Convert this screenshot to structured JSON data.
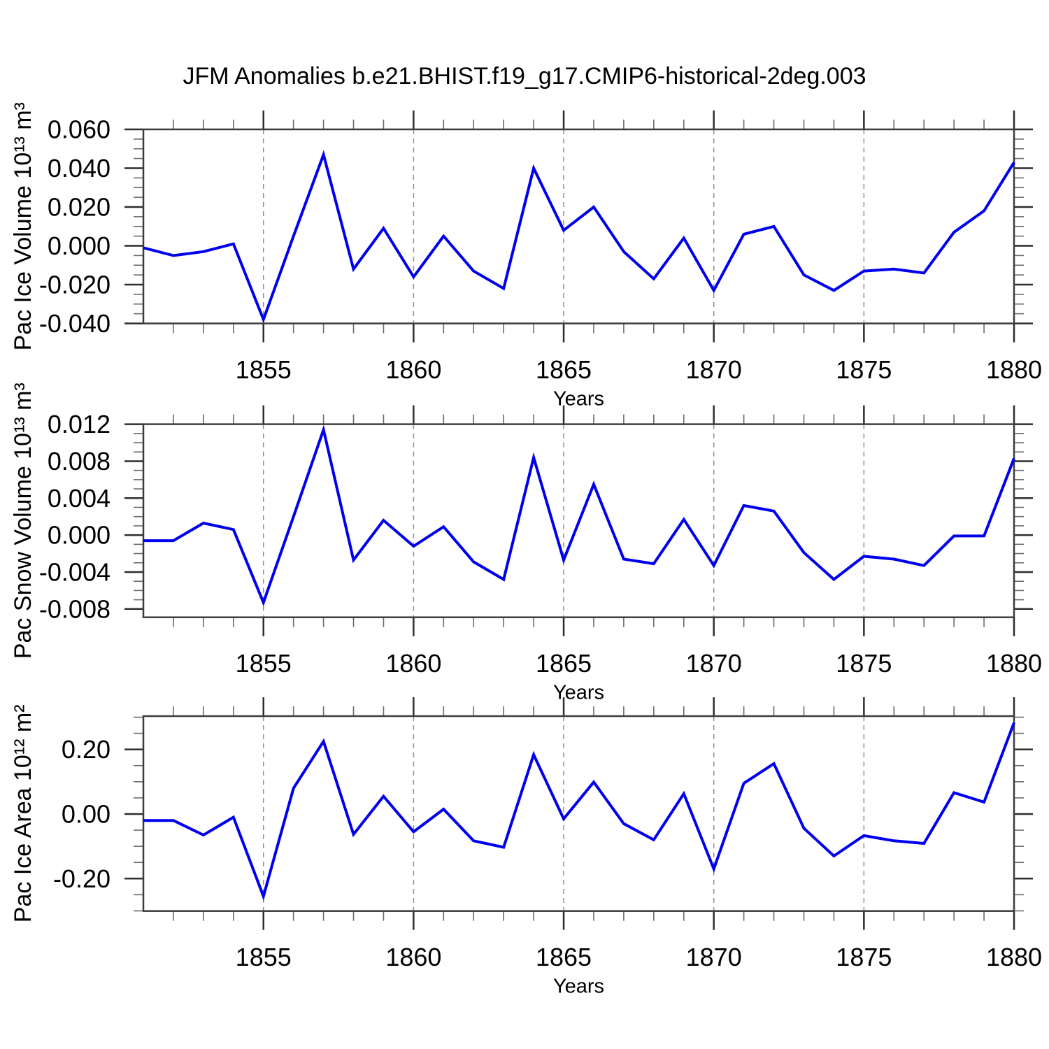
{
  "title": "JFM Anomalies b.e21.BHIST.f19_g17.CMIP6-historical-2deg.003",
  "colors": {
    "line": "#0000EE",
    "frame": "#3d3d3d",
    "major_tick": "#2e2e2e",
    "minor_tick": "#6b6b6b",
    "gridline": "#909090",
    "text": "#000000"
  },
  "chart_data": [
    {
      "type": "line",
      "panel": "pac-ice-volume",
      "ylabel": "Pac Ice Volume 10¹³ m³",
      "xlabel": "Years",
      "x": [
        1851,
        1852,
        1853,
        1854,
        1855,
        1856,
        1857,
        1858,
        1859,
        1860,
        1861,
        1862,
        1863,
        1864,
        1865,
        1866,
        1867,
        1868,
        1869,
        1870,
        1871,
        1872,
        1873,
        1874,
        1875,
        1876,
        1877,
        1878,
        1879,
        1880
      ],
      "values": [
        -0.001,
        -0.005,
        -0.003,
        0.001,
        -0.038,
        0.005,
        0.047,
        -0.012,
        0.009,
        -0.016,
        0.005,
        -0.013,
        -0.022,
        0.04,
        0.008,
        0.02,
        -0.003,
        -0.017,
        0.004,
        -0.023,
        0.006,
        0.01,
        -0.015,
        -0.023,
        -0.013,
        -0.012,
        -0.014,
        0.007,
        0.018,
        0.043
      ],
      "xlim": [
        1851,
        1880
      ],
      "ylim": [
        -0.04,
        0.06
      ],
      "ytick_values": [
        0.06,
        0.04,
        0.02,
        0.0,
        -0.02,
        -0.04
      ],
      "ytick_labels": [
        "0.060",
        "0.040",
        "0.020",
        "0.000",
        "-0.020",
        "-0.040"
      ],
      "ytick_minor_step": 0.005,
      "xtick_labeled": [
        1855,
        1860,
        1865,
        1870,
        1875,
        1880
      ],
      "x_gridlines": [
        1855,
        1860,
        1865,
        1870,
        1875
      ],
      "grid": "dashed-vertical",
      "legend": "none"
    },
    {
      "type": "line",
      "panel": "pac-snow-volume",
      "ylabel": "Pac Snow Volume 10¹³ m³",
      "xlabel": "Years",
      "x": [
        1851,
        1852,
        1853,
        1854,
        1855,
        1856,
        1857,
        1858,
        1859,
        1860,
        1861,
        1862,
        1863,
        1864,
        1865,
        1866,
        1867,
        1868,
        1869,
        1870,
        1871,
        1872,
        1873,
        1874,
        1875,
        1876,
        1877,
        1878,
        1879,
        1880
      ],
      "values": [
        -0.0006,
        -0.0006,
        0.0013,
        0.0006,
        -0.0073,
        0.002,
        0.0114,
        -0.0027,
        0.0016,
        -0.0012,
        0.0009,
        -0.0029,
        -0.0048,
        0.0084,
        -0.0027,
        0.0055,
        -0.0026,
        -0.0031,
        0.0017,
        -0.0033,
        0.0032,
        0.0026,
        -0.0019,
        -0.0048,
        -0.0023,
        -0.0026,
        -0.0033,
        -0.0001,
        -0.0001,
        0.0083
      ],
      "xlim": [
        1851,
        1880
      ],
      "ylim": [
        -0.0089,
        0.012
      ],
      "ytick_values": [
        0.012,
        0.008,
        0.004,
        0.0,
        -0.004,
        -0.008
      ],
      "ytick_labels": [
        "0.012",
        "0.008",
        "0.004",
        "0.000",
        "-0.004",
        "-0.008"
      ],
      "ytick_minor_step": 0.001,
      "xtick_labeled": [
        1855,
        1860,
        1865,
        1870,
        1875,
        1880
      ],
      "x_gridlines": [
        1855,
        1860,
        1865,
        1870,
        1875
      ],
      "grid": "dashed-vertical",
      "legend": "none"
    },
    {
      "type": "line",
      "panel": "pac-ice-area",
      "ylabel": "Pac Ice Area 10¹² m²",
      "xlabel": "Years",
      "x": [
        1851,
        1852,
        1853,
        1854,
        1855,
        1856,
        1857,
        1858,
        1859,
        1860,
        1861,
        1862,
        1863,
        1864,
        1865,
        1866,
        1867,
        1868,
        1869,
        1870,
        1871,
        1872,
        1873,
        1874,
        1875,
        1876,
        1877,
        1878,
        1879,
        1880
      ],
      "values": [
        -0.02,
        -0.02,
        -0.065,
        -0.01,
        -0.255,
        0.08,
        0.225,
        -0.063,
        0.055,
        -0.055,
        0.015,
        -0.083,
        -0.103,
        0.184,
        -0.015,
        0.099,
        -0.03,
        -0.08,
        0.063,
        -0.17,
        0.095,
        0.156,
        -0.044,
        -0.13,
        -0.067,
        -0.083,
        -0.091,
        0.066,
        0.037,
        0.283
      ],
      "xlim": [
        1851,
        1880
      ],
      "ylim": [
        -0.3005,
        0.3033
      ],
      "ytick_values": [
        0.2,
        0.0,
        -0.2
      ],
      "ytick_labels": [
        "0.20",
        "0.00",
        "-0.20"
      ],
      "ytick_minor_step": 0.05,
      "xtick_labeled": [
        1855,
        1860,
        1865,
        1870,
        1875,
        1880
      ],
      "x_gridlines": [
        1855,
        1860,
        1865,
        1870,
        1875
      ],
      "grid": "dashed-vertical",
      "legend": "none"
    }
  ]
}
